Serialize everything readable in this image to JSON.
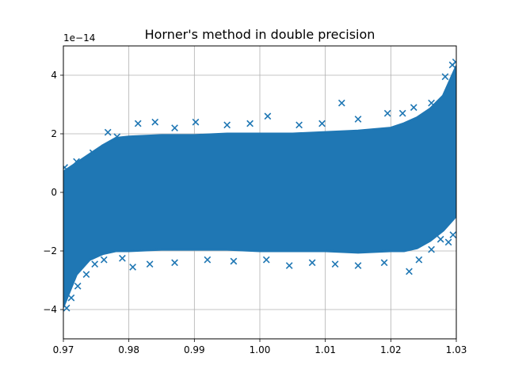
{
  "chart_data": {
    "type": "scatter",
    "title": "Horner's method in double precision",
    "xlabel": "",
    "ylabel": "",
    "y_offset_text": "1e−14",
    "xlim": [
      0.97,
      1.03
    ],
    "ylim": [
      -5,
      5
    ],
    "grid": true,
    "marker": "x",
    "x_ticks": [
      0.97,
      0.98,
      0.99,
      1.0,
      1.01,
      1.02,
      1.03
    ],
    "x_tick_labels": [
      "0.97",
      "0.98",
      "0.99",
      "1.00",
      "1.01",
      "1.02",
      "1.03"
    ],
    "y_ticks": [
      -4,
      -2,
      0,
      2,
      4
    ],
    "y_tick_labels": [
      "−4",
      "−2",
      "0",
      "2",
      "4"
    ],
    "series": [
      {
        "color": "#1f77b4",
        "band_x": [
          0.97,
          0.972,
          0.974,
          0.976,
          0.978,
          0.98,
          0.985,
          0.99,
          0.995,
          1.0,
          1.005,
          1.01,
          1.015,
          1.02,
          1.022,
          1.024,
          1.026,
          1.028,
          1.03
        ],
        "band_upper": [
          0.7,
          1.0,
          1.3,
          1.6,
          1.85,
          1.9,
          1.95,
          1.95,
          2.0,
          2.0,
          2.0,
          2.05,
          2.1,
          2.2,
          2.35,
          2.55,
          2.85,
          3.3,
          4.3
        ],
        "band_lower": [
          -3.9,
          -2.8,
          -2.3,
          -2.1,
          -2.0,
          -2.0,
          -1.95,
          -1.95,
          -1.95,
          -2.0,
          -2.0,
          -2.0,
          -2.05,
          -2.0,
          -2.0,
          -1.9,
          -1.65,
          -1.3,
          -0.8
        ],
        "outliers": [
          [
            0.9705,
            -3.95
          ],
          [
            0.9712,
            -3.6
          ],
          [
            0.9722,
            -3.2
          ],
          [
            0.9735,
            -2.8
          ],
          [
            0.9748,
            -2.45
          ],
          [
            0.9762,
            -2.3
          ],
          [
            0.979,
            -2.25
          ],
          [
            0.9806,
            -2.55
          ],
          [
            0.9832,
            -2.45
          ],
          [
            0.987,
            -2.4
          ],
          [
            0.992,
            -2.3
          ],
          [
            0.996,
            -2.35
          ],
          [
            1.001,
            -2.3
          ],
          [
            1.0045,
            -2.5
          ],
          [
            1.008,
            -2.4
          ],
          [
            1.0115,
            -2.45
          ],
          [
            1.015,
            -2.5
          ],
          [
            1.019,
            -2.4
          ],
          [
            1.0228,
            -2.7
          ],
          [
            1.0243,
            -2.3
          ],
          [
            1.0262,
            -1.95
          ],
          [
            1.0276,
            -1.6
          ],
          [
            1.0288,
            -1.7
          ],
          [
            1.0295,
            -1.45
          ],
          [
            0.9702,
            0.85
          ],
          [
            0.972,
            1.05
          ],
          [
            0.9745,
            1.35
          ],
          [
            0.9768,
            2.05
          ],
          [
            0.9782,
            1.9
          ],
          [
            0.9814,
            2.35
          ],
          [
            0.984,
            2.4
          ],
          [
            0.987,
            2.2
          ],
          [
            0.9902,
            2.4
          ],
          [
            0.995,
            2.3
          ],
          [
            0.9985,
            2.35
          ],
          [
            1.0012,
            2.6
          ],
          [
            1.006,
            2.3
          ],
          [
            1.0095,
            2.35
          ],
          [
            1.0125,
            3.05
          ],
          [
            1.015,
            2.5
          ],
          [
            1.0195,
            2.7
          ],
          [
            1.0218,
            2.7
          ],
          [
            1.0235,
            2.9
          ],
          [
            1.0262,
            3.05
          ],
          [
            1.0283,
            3.95
          ],
          [
            1.0294,
            4.35
          ],
          [
            1.0299,
            4.45
          ]
        ]
      }
    ]
  }
}
